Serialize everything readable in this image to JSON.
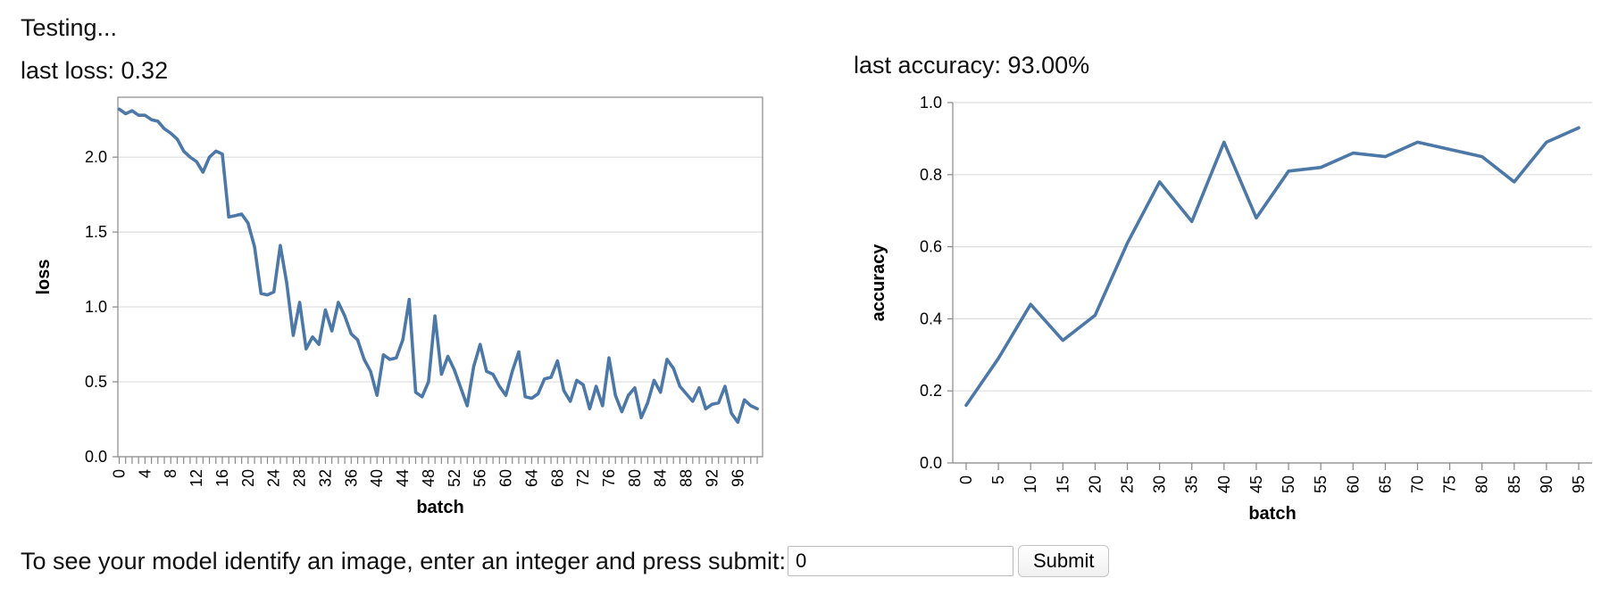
{
  "status": "Testing...",
  "loss_label": "last loss: 0.32",
  "accuracy_label": "last accuracy: 93.00%",
  "prompt": {
    "text": "To see your model identify an image, enter an integer and press submit:",
    "input_value": "0",
    "submit_label": "Submit"
  },
  "colors": {
    "series": "#4c78a8",
    "grid": "#dddddd",
    "axis": "#888888"
  },
  "chart_data": [
    {
      "type": "line",
      "xlabel": "batch",
      "ylabel": "loss",
      "ylim": [
        0,
        2.4
      ],
      "yticks": [
        0.0,
        0.5,
        1.0,
        1.5,
        2.0
      ],
      "x_tick_labels": [
        "0",
        "4",
        "8",
        "12",
        "16",
        "20",
        "24",
        "28",
        "32",
        "36",
        "40",
        "44",
        "48",
        "52",
        "56",
        "60",
        "64",
        "68",
        "72",
        "76",
        "80",
        "84",
        "88",
        "92",
        "96"
      ],
      "grid": true,
      "x": [
        0,
        1,
        2,
        3,
        4,
        5,
        6,
        7,
        8,
        9,
        10,
        11,
        12,
        13,
        14,
        15,
        16,
        17,
        18,
        19,
        20,
        21,
        22,
        23,
        24,
        25,
        26,
        27,
        28,
        29,
        30,
        31,
        32,
        33,
        34,
        35,
        36,
        37,
        38,
        39,
        40,
        41,
        42,
        43,
        44,
        45,
        46,
        47,
        48,
        49,
        50,
        51,
        52,
        53,
        54,
        55,
        56,
        57,
        58,
        59,
        60,
        61,
        62,
        63,
        64,
        65,
        66,
        67,
        68,
        69,
        70,
        71,
        72,
        73,
        74,
        75,
        76,
        77,
        78,
        79,
        80,
        81,
        82,
        83,
        84,
        85,
        86,
        87,
        88,
        89,
        90,
        91,
        92,
        93,
        94,
        95,
        96,
        97,
        98,
        99
      ],
      "values": [
        2.32,
        2.29,
        2.31,
        2.28,
        2.28,
        2.25,
        2.24,
        2.19,
        2.16,
        2.12,
        2.04,
        2.0,
        1.97,
        1.9,
        2.0,
        2.04,
        2.02,
        1.6,
        1.61,
        1.62,
        1.56,
        1.4,
        1.09,
        1.08,
        1.1,
        1.41,
        1.16,
        0.81,
        1.03,
        0.72,
        0.8,
        0.75,
        0.98,
        0.84,
        1.03,
        0.94,
        0.82,
        0.78,
        0.65,
        0.57,
        0.41,
        0.68,
        0.65,
        0.66,
        0.78,
        1.05,
        0.43,
        0.4,
        0.5,
        0.94,
        0.55,
        0.67,
        0.58,
        0.46,
        0.34,
        0.6,
        0.75,
        0.57,
        0.55,
        0.47,
        0.41,
        0.57,
        0.7,
        0.4,
        0.39,
        0.42,
        0.52,
        0.53,
        0.64,
        0.44,
        0.37,
        0.51,
        0.48,
        0.32,
        0.47,
        0.34,
        0.66,
        0.41,
        0.3,
        0.41,
        0.46,
        0.26,
        0.36,
        0.51,
        0.43,
        0.65,
        0.59,
        0.47,
        0.42,
        0.37,
        0.46,
        0.32,
        0.35,
        0.36,
        0.47,
        0.29,
        0.23,
        0.38,
        0.34,
        0.32
      ]
    },
    {
      "type": "line",
      "xlabel": "batch",
      "ylabel": "accuracy",
      "ylim": [
        0,
        1.0
      ],
      "yticks": [
        0.0,
        0.2,
        0.4,
        0.6,
        0.8,
        1.0
      ],
      "x_tick_labels": [
        "0",
        "5",
        "10",
        "15",
        "20",
        "25",
        "30",
        "35",
        "40",
        "45",
        "50",
        "55",
        "60",
        "65",
        "70",
        "75",
        "80",
        "85",
        "90",
        "95"
      ],
      "grid": true,
      "x": [
        0,
        5,
        10,
        15,
        20,
        25,
        30,
        35,
        40,
        45,
        50,
        55,
        60,
        65,
        70,
        80,
        85,
        90,
        95
      ],
      "values": [
        0.16,
        0.29,
        0.44,
        0.34,
        0.41,
        0.61,
        0.78,
        0.67,
        0.89,
        0.68,
        0.81,
        0.82,
        0.86,
        0.85,
        0.89,
        0.85,
        0.78,
        0.89,
        0.93
      ]
    }
  ]
}
